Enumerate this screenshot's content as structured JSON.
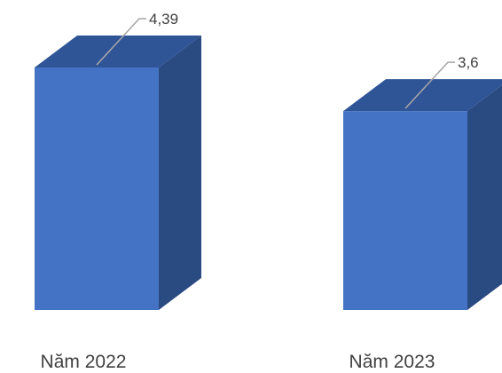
{
  "chart_data": {
    "type": "bar",
    "style": "3d-column",
    "categories": [
      "Năm 2022",
      "Năm 2023"
    ],
    "values": [
      4.39,
      3.6
    ],
    "value_labels": [
      "4,39",
      "3,6"
    ],
    "title": "",
    "xlabel": "",
    "ylabel": "",
    "ylim": [
      0,
      4.39
    ],
    "grid": false,
    "legend": "none",
    "colors": {
      "front": "#4472C4",
      "top": "#2F5597",
      "side": "#2A4A82",
      "leader": "#A6A6A6",
      "text": "#404040"
    }
  }
}
